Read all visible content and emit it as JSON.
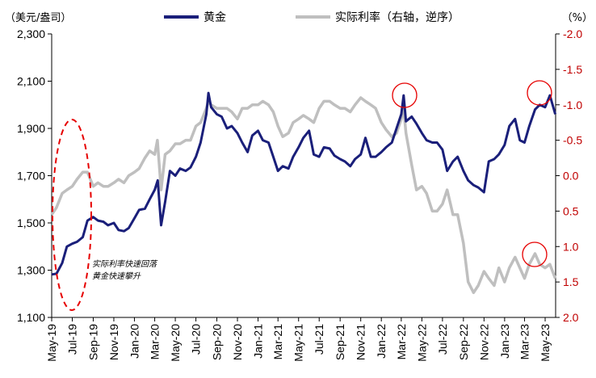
{
  "chart_data": {
    "type": "line",
    "left_unit": "（美元/盎司）",
    "right_unit": "（%）",
    "x_ticks": [
      "May-19",
      "Jul-19",
      "Sep-19",
      "Nov-19",
      "Jan-20",
      "Mar-20",
      "May-20",
      "Jul-20",
      "Sep-20",
      "Nov-20",
      "Jan-21",
      "Mar-21",
      "May-21",
      "Jul-21",
      "Sep-21",
      "Nov-21",
      "Jan-22",
      "Mar-22",
      "May-22",
      "Jul-22",
      "Sep-22",
      "Nov-22",
      "Jan-23",
      "Mar-23",
      "May-23"
    ],
    "y_left": {
      "ticks": [
        "1,100",
        "1,300",
        "1,500",
        "1,700",
        "1,900",
        "2,100",
        "2,300"
      ],
      "range": [
        1100,
        2300
      ]
    },
    "y_right": {
      "ticks": [
        "-2.0",
        "-1.5",
        "-1.0",
        "-0.5",
        "0.0",
        "0.5",
        "1.0",
        "1.5",
        "2.0"
      ],
      "range": [
        -2.0,
        2.0
      ],
      "inverted": true
    },
    "series": [
      {
        "name": "黄金",
        "axis": "left",
        "color": "#1a1f7a",
        "x": [
          "2019-05-01",
          "2019-05-15",
          "2019-06-01",
          "2019-06-15",
          "2019-07-01",
          "2019-07-15",
          "2019-08-01",
          "2019-08-15",
          "2019-09-01",
          "2019-09-15",
          "2019-10-01",
          "2019-10-15",
          "2019-11-01",
          "2019-11-15",
          "2019-12-01",
          "2019-12-15",
          "2020-01-01",
          "2020-01-15",
          "2020-02-01",
          "2020-02-15",
          "2020-03-01",
          "2020-03-10",
          "2020-03-20",
          "2020-04-01",
          "2020-04-15",
          "2020-05-01",
          "2020-05-15",
          "2020-06-01",
          "2020-06-15",
          "2020-07-01",
          "2020-07-15",
          "2020-08-01",
          "2020-08-07",
          "2020-08-15",
          "2020-09-01",
          "2020-09-15",
          "2020-10-01",
          "2020-10-15",
          "2020-11-01",
          "2020-11-15",
          "2020-12-01",
          "2020-12-15",
          "2021-01-01",
          "2021-01-15",
          "2021-02-01",
          "2021-02-15",
          "2021-03-01",
          "2021-03-15",
          "2021-04-01",
          "2021-04-15",
          "2021-05-01",
          "2021-05-15",
          "2021-06-01",
          "2021-06-15",
          "2021-07-01",
          "2021-07-15",
          "2021-08-01",
          "2021-08-15",
          "2021-09-01",
          "2021-09-15",
          "2021-10-01",
          "2021-10-15",
          "2021-11-01",
          "2021-11-15",
          "2021-12-01",
          "2021-12-15",
          "2022-01-01",
          "2022-01-15",
          "2022-02-01",
          "2022-02-15",
          "2022-03-01",
          "2022-03-08",
          "2022-03-15",
          "2022-04-01",
          "2022-04-15",
          "2022-05-01",
          "2022-05-15",
          "2022-06-01",
          "2022-06-15",
          "2022-07-01",
          "2022-07-15",
          "2022-08-01",
          "2022-08-15",
          "2022-09-01",
          "2022-09-15",
          "2022-10-01",
          "2022-10-15",
          "2022-11-01",
          "2022-11-15",
          "2022-12-01",
          "2022-12-15",
          "2023-01-01",
          "2023-01-15",
          "2023-02-01",
          "2023-02-15",
          "2023-03-01",
          "2023-03-15",
          "2023-04-01",
          "2023-04-15",
          "2023-05-01",
          "2023-05-15",
          "2023-05-31"
        ],
        "values": [
          1282,
          1285,
          1330,
          1400,
          1412,
          1420,
          1440,
          1510,
          1525,
          1510,
          1505,
          1490,
          1500,
          1470,
          1465,
          1478,
          1520,
          1555,
          1560,
          1600,
          1640,
          1680,
          1490,
          1590,
          1720,
          1700,
          1730,
          1720,
          1735,
          1780,
          1840,
          1960,
          2050,
          1990,
          1960,
          1950,
          1900,
          1910,
          1880,
          1840,
          1800,
          1870,
          1890,
          1850,
          1840,
          1780,
          1720,
          1740,
          1730,
          1780,
          1820,
          1860,
          1890,
          1790,
          1780,
          1820,
          1815,
          1785,
          1770,
          1760,
          1740,
          1770,
          1790,
          1860,
          1780,
          1780,
          1800,
          1820,
          1840,
          1900,
          1960,
          2040,
          1930,
          1950,
          1920,
          1880,
          1850,
          1840,
          1840,
          1810,
          1720,
          1760,
          1780,
          1720,
          1680,
          1660,
          1650,
          1630,
          1760,
          1770,
          1790,
          1830,
          1910,
          1940,
          1850,
          1840,
          1910,
          1980,
          2000,
          1990,
          2040,
          1960
        ]
      },
      {
        "name": "实际利率（右轴，逆序）",
        "axis": "right",
        "color": "#bfbfbf",
        "x": [
          "2019-05-01",
          "2019-05-15",
          "2019-06-01",
          "2019-06-15",
          "2019-07-01",
          "2019-07-15",
          "2019-08-01",
          "2019-08-15",
          "2019-09-01",
          "2019-09-15",
          "2019-10-01",
          "2019-10-15",
          "2019-11-01",
          "2019-11-15",
          "2019-12-01",
          "2019-12-15",
          "2020-01-01",
          "2020-01-15",
          "2020-02-01",
          "2020-02-15",
          "2020-03-01",
          "2020-03-09",
          "2020-03-20",
          "2020-04-01",
          "2020-04-15",
          "2020-05-01",
          "2020-05-15",
          "2020-06-01",
          "2020-06-15",
          "2020-07-01",
          "2020-07-15",
          "2020-08-01",
          "2020-08-07",
          "2020-08-15",
          "2020-09-01",
          "2020-09-15",
          "2020-10-01",
          "2020-10-15",
          "2020-11-01",
          "2020-11-15",
          "2020-12-01",
          "2020-12-15",
          "2021-01-01",
          "2021-01-15",
          "2021-02-01",
          "2021-02-15",
          "2021-03-01",
          "2021-03-15",
          "2021-04-01",
          "2021-04-15",
          "2021-05-01",
          "2021-05-15",
          "2021-06-01",
          "2021-06-15",
          "2021-07-01",
          "2021-07-15",
          "2021-08-01",
          "2021-08-15",
          "2021-09-01",
          "2021-09-15",
          "2021-10-01",
          "2021-10-15",
          "2021-11-01",
          "2021-11-15",
          "2021-12-01",
          "2021-12-15",
          "2022-01-01",
          "2022-01-15",
          "2022-02-01",
          "2022-02-15",
          "2022-03-01",
          "2022-03-08",
          "2022-03-15",
          "2022-04-01",
          "2022-04-15",
          "2022-05-01",
          "2022-05-15",
          "2022-06-01",
          "2022-06-15",
          "2022-07-01",
          "2022-07-15",
          "2022-08-01",
          "2022-08-15",
          "2022-09-01",
          "2022-09-15",
          "2022-10-01",
          "2022-10-15",
          "2022-11-01",
          "2022-11-15",
          "2022-12-01",
          "2022-12-15",
          "2023-01-01",
          "2023-01-15",
          "2023-02-01",
          "2023-02-15",
          "2023-03-01",
          "2023-03-15",
          "2023-04-01",
          "2023-04-15",
          "2023-05-01",
          "2023-05-15",
          "2023-05-31"
        ],
        "values": [
          0.55,
          0.45,
          0.25,
          0.2,
          0.15,
          0.05,
          -0.05,
          -0.05,
          0.15,
          0.1,
          0.15,
          0.15,
          0.1,
          0.05,
          0.1,
          0.0,
          -0.05,
          -0.1,
          -0.25,
          -0.35,
          -0.3,
          -0.5,
          0.2,
          -0.3,
          -0.35,
          -0.45,
          -0.45,
          -0.5,
          -0.5,
          -0.7,
          -0.75,
          -0.95,
          -1.05,
          -1.0,
          -0.95,
          -0.95,
          -0.95,
          -0.9,
          -0.8,
          -0.95,
          -0.95,
          -1.0,
          -1.0,
          -1.05,
          -1.0,
          -0.9,
          -0.7,
          -0.55,
          -0.6,
          -0.75,
          -0.8,
          -0.85,
          -0.8,
          -0.75,
          -0.95,
          -1.05,
          -1.05,
          -1.0,
          -0.95,
          -0.95,
          -0.9,
          -1.0,
          -1.1,
          -1.05,
          -1.0,
          -0.95,
          -0.75,
          -0.65,
          -0.55,
          -0.6,
          -0.8,
          -0.95,
          -0.6,
          -0.15,
          0.2,
          0.15,
          0.25,
          0.5,
          0.5,
          0.4,
          0.2,
          0.55,
          0.55,
          0.95,
          1.5,
          1.65,
          1.55,
          1.35,
          1.45,
          1.55,
          1.3,
          1.5,
          1.3,
          1.15,
          1.3,
          1.45,
          1.25,
          1.1,
          1.25,
          1.3,
          1.25,
          1.45
        ]
      }
    ],
    "annotation": [
      "实际利率快速回落",
      "黄金快速攀升"
    ]
  },
  "colors": {
    "gold_line": "#1a1f7a",
    "rate_line": "#bfbfbf",
    "right_axis_text": "#c00000",
    "highlight": "#e60000"
  }
}
